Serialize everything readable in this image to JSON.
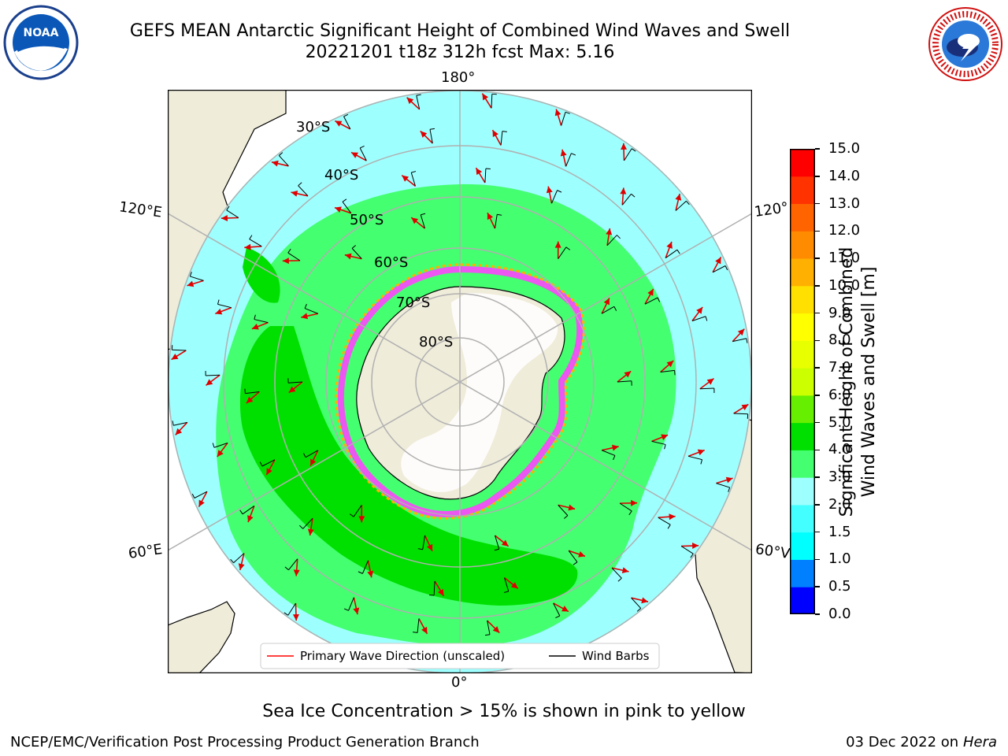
{
  "header": {
    "title_line1": "GEFS MEAN Antarctic Significant Height of Combined Wind Waves and Swell",
    "title_line2": "20221201 t18z 312h fcst   Max: 5.16",
    "left_logo_text": "NOAA",
    "right_logo_text": "NATIONAL WEATHER SERVICE"
  },
  "map": {
    "projection": "south-polar-stereographic",
    "longitude_labels": {
      "top": "180°",
      "bottom": "0°",
      "upper_left": "120°E",
      "lower_left": "60°E",
      "upper_right": "120°",
      "lower_right": "60°V"
    },
    "latitude_labels": [
      "30°S",
      "40°S",
      "50°S",
      "60°S",
      "70°S",
      "80°S"
    ],
    "legend": {
      "primary_wave": "Primary Wave Direction (unscaled)",
      "wind_barbs": "Wind Barbs",
      "primary_wave_color": "#ff0000",
      "wind_barbs_color": "#000000"
    },
    "colors": {
      "land": "#efecda",
      "ocean_low": "#9effff",
      "ocean_mid": "#44ff70",
      "ocean_high": "#00e000",
      "sea_ice": "#ff44ff",
      "ice_edge": "#ffb000",
      "grid": "#b0b0b0"
    }
  },
  "colorbar": {
    "label_line1": "Significant Height of Combined",
    "label_line2": "Wind Waves and Swell [m]",
    "ticks": [
      "0.0",
      "0.5",
      "1.0",
      "1.5",
      "2.0",
      "3.0",
      "4.0",
      "5.0",
      "6.0",
      "7.0",
      "8.0",
      "9.0",
      "10.0",
      "11.0",
      "12.0",
      "13.0",
      "14.0",
      "15.0"
    ],
    "colors": [
      "#0000ff",
      "#0080ff",
      "#00ffff",
      "#44ffff",
      "#9effff",
      "#44ff70",
      "#00e000",
      "#66ef00",
      "#ccff00",
      "#e8ff00",
      "#ffff00",
      "#ffe000",
      "#ffb000",
      "#ff8c00",
      "#ff6400",
      "#ff3200",
      "#ff0000"
    ]
  },
  "footer": {
    "note": "Sea Ice Concentration > 15% is shown in pink to yellow",
    "credit": "NCEP/EMC/Verification Post Processing Product Generation Branch",
    "date": "03 Dec 2022 on",
    "host": "Hera"
  }
}
